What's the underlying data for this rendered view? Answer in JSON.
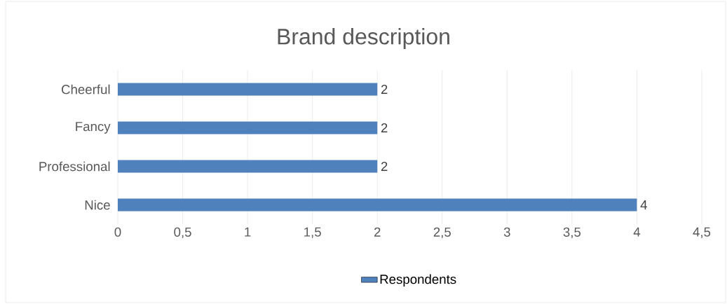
{
  "chart_data": {
    "type": "bar",
    "orientation": "horizontal",
    "title": "Brand description",
    "categories": [
      "Cheerful",
      "Fancy",
      "Professional",
      "Nice"
    ],
    "series": [
      {
        "name": "Respondents",
        "color": "#4f81bd",
        "values": [
          2,
          2,
          2,
          4
        ]
      }
    ],
    "xlim": [
      0,
      4.5
    ],
    "xticks": [
      0,
      {
        "value": 0.5,
        "label": "0,5"
      },
      1,
      {
        "value": 1.5,
        "label": "1,5"
      },
      2,
      {
        "value": 2.5,
        "label": "2,5"
      },
      3,
      {
        "value": 3.5,
        "label": "3,5"
      },
      4,
      {
        "value": 4.5,
        "label": "4,5"
      }
    ],
    "grid": "x",
    "legend": "bottom",
    "data_labels": true
  }
}
